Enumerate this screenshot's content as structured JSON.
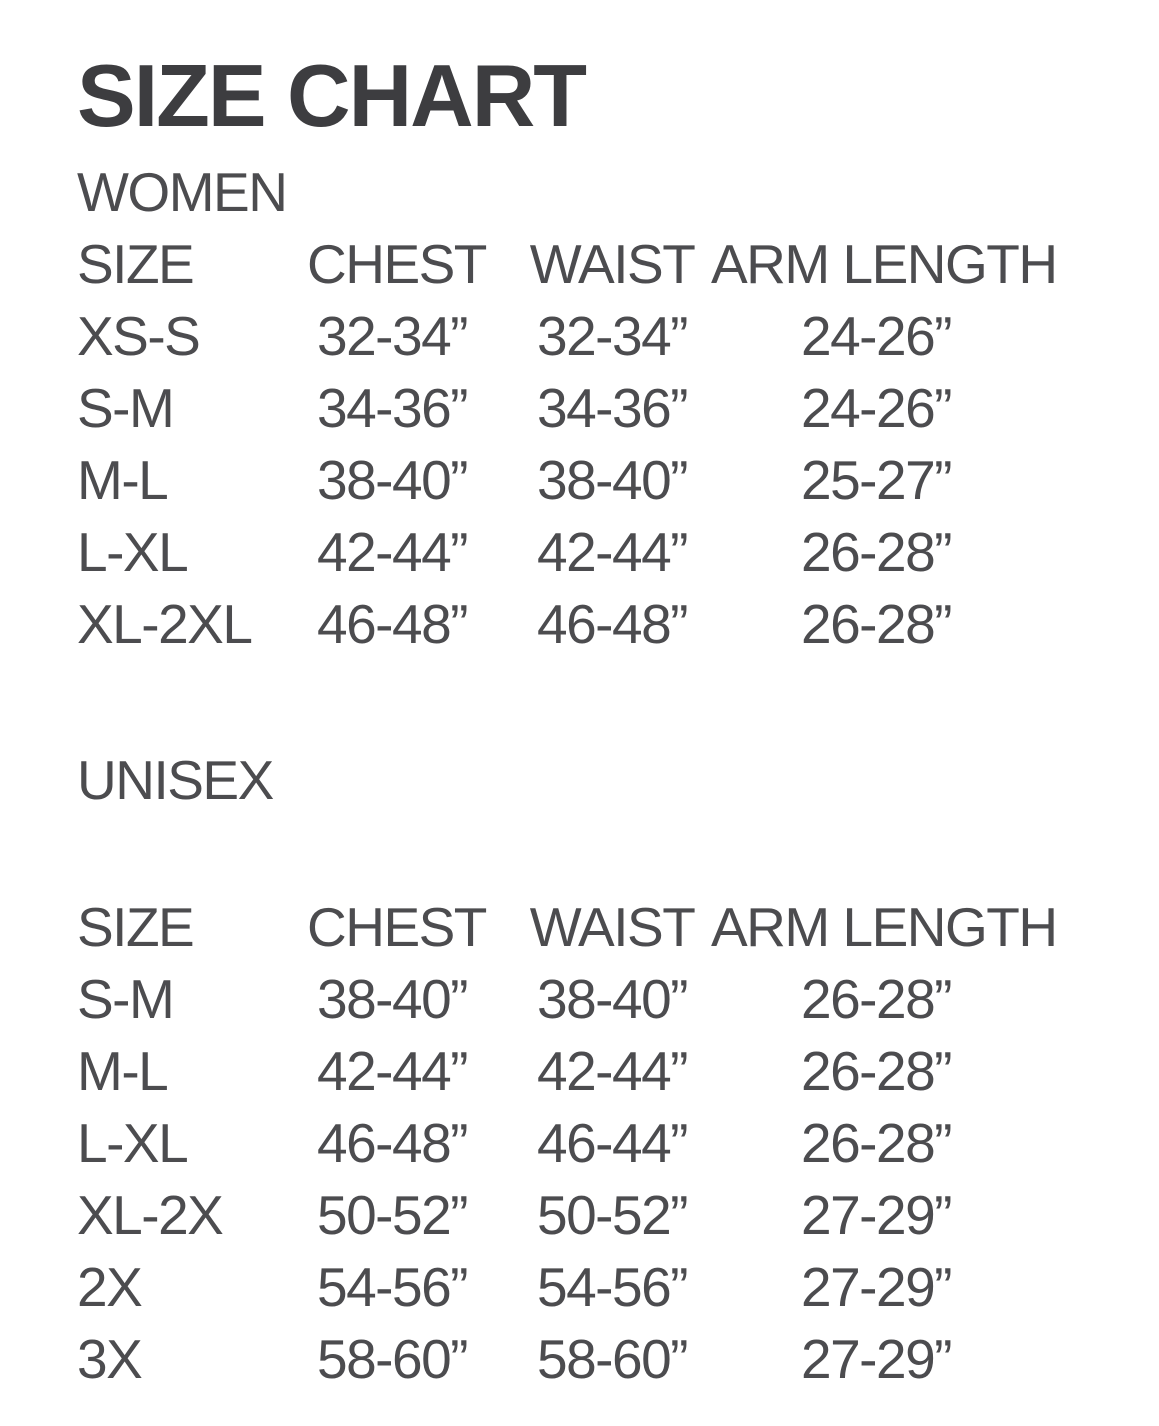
{
  "page": {
    "title": "SIZE CHART"
  },
  "colors": {
    "background": "#ffffff",
    "title_text": "#3d3d40",
    "body_text": "#4c4c4f"
  },
  "sections": [
    {
      "label": "WOMEN",
      "columns": [
        "SIZE",
        "CHEST",
        "WAIST",
        "ARM LENGTH"
      ],
      "rows": [
        [
          "XS-S",
          "32-34”",
          "32-34”",
          "24-26”"
        ],
        [
          "S-M",
          "34-36”",
          "34-36”",
          "24-26”"
        ],
        [
          "M-L",
          "38-40”",
          "38-40”",
          "25-27”"
        ],
        [
          "L-XL",
          "42-44”",
          "42-44”",
          "26-28”"
        ],
        [
          "XL-2XL",
          "46-48”",
          "46-48”",
          "26-28”"
        ]
      ]
    },
    {
      "label": "UNISEX",
      "columns": [
        "SIZE",
        "CHEST",
        "WAIST",
        "ARM LENGTH"
      ],
      "rows": [
        [
          "S-M",
          "38-40”",
          "38-40”",
          "26-28”"
        ],
        [
          "M-L",
          "42-44”",
          "42-44”",
          "26-28”"
        ],
        [
          "L-XL",
          "46-48”",
          "46-44”",
          "26-28”"
        ],
        [
          "XL-2X",
          "50-52”",
          "50-52”",
          "27-29”"
        ],
        [
          "2X",
          "54-56”",
          "54-56”",
          "27-29”"
        ],
        [
          "3X",
          "58-60”",
          "58-60”",
          "27-29”"
        ]
      ]
    }
  ]
}
